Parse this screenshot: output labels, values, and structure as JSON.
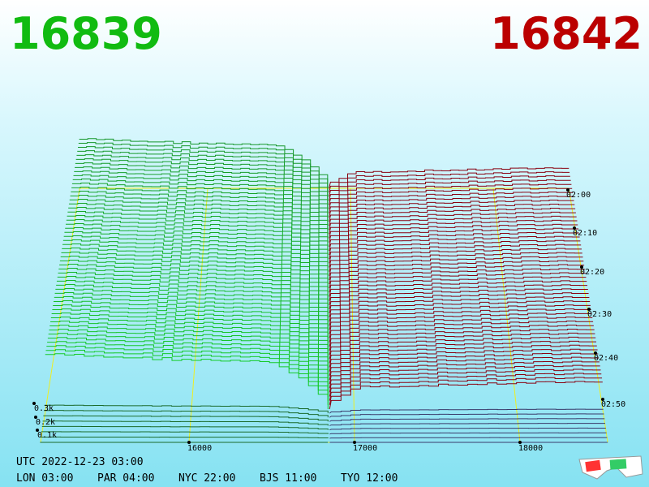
{
  "header": {
    "bid": "16839",
    "ask": "16842"
  },
  "price_axis": [
    "16000",
    "17000",
    "18000"
  ],
  "time_axis": [
    "02:00",
    "02:10",
    "02:20",
    "02:30",
    "02:40",
    "02:50"
  ],
  "depth_axis": [
    "0.3k",
    "0.2k",
    "0.1k"
  ],
  "footer": {
    "utc": "UTC 2022-12-23 03:00",
    "cities": [
      "LON 03:00",
      "PAR 04:00",
      "NYC 22:00",
      "BJS 11:00",
      "TYO 12:00"
    ]
  }
}
